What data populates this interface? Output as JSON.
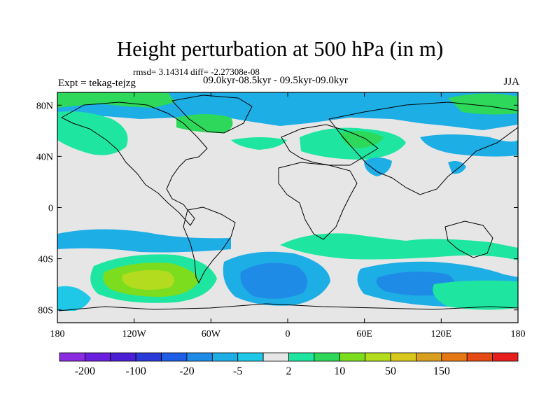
{
  "title": "Height perturbation at 500 hPa (in m)",
  "stats": "rmsd= 3.14314 diff= -2.27308e-08",
  "experiment": "Expt = tekag-tejzg",
  "period": "09.0kyr-08.5kyr - 09.5kyr-09.0kyr",
  "season": "JJA",
  "axes": {
    "lat_ticks": [
      {
        "value": 80,
        "label": "80N"
      },
      {
        "value": 40,
        "label": "40N"
      },
      {
        "value": 0,
        "label": "0"
      },
      {
        "value": -40,
        "label": "40S"
      },
      {
        "value": -80,
        "label": "80S"
      }
    ],
    "lon_ticks": [
      {
        "value": -180,
        "label": "180"
      },
      {
        "value": -120,
        "label": "120W"
      },
      {
        "value": -60,
        "label": "60W"
      },
      {
        "value": 0,
        "label": "0"
      },
      {
        "value": 60,
        "label": "60E"
      },
      {
        "value": 120,
        "label": "120E"
      },
      {
        "value": 180,
        "label": "180"
      }
    ]
  },
  "colorbar": {
    "colors": [
      "#8a2be2",
      "#6a1ee0",
      "#4a1fd6",
      "#2a3ad8",
      "#1e5ee6",
      "#1e8ce6",
      "#1eaee6",
      "#1ec8e6",
      "#e6e6e6",
      "#1ee6a0",
      "#2ed85a",
      "#7cdc1e",
      "#b4dc1e",
      "#d8c81e",
      "#d8a01e",
      "#e67814",
      "#e64a14",
      "#e61e1e"
    ],
    "labels": [
      "-200",
      "-100",
      "-20",
      "-5",
      "2",
      "10",
      "50",
      "150"
    ]
  }
}
